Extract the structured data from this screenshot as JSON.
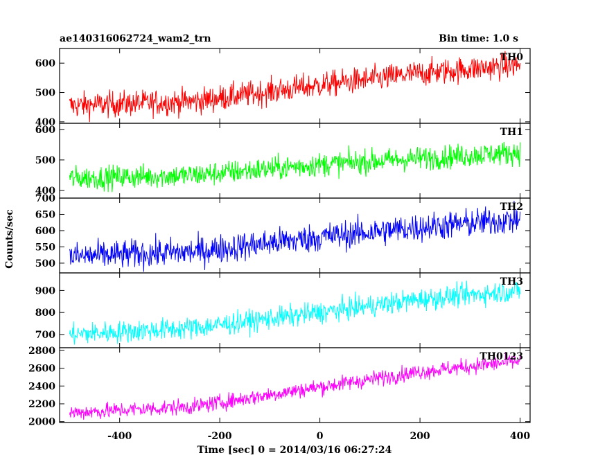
{
  "chart_data": {
    "type": "line",
    "title": "ae140316062724_wam2_trn",
    "bin_time_label": "Bin time: 1.0 s",
    "ylabel": "Counts/sec",
    "xlabel": "Time [sec] 0 = 2014/03/16 06:27:24",
    "xlim": [
      -520,
      420
    ],
    "x_data_range": [
      -500,
      400
    ],
    "x_ticks": [
      -400,
      -200,
      0,
      200,
      400
    ],
    "panels": [
      {
        "name": "TH0",
        "color": "#ff0000",
        "ylim": [
          395,
          650
        ],
        "y_ticks": [
          400,
          500,
          600
        ],
        "trend": [
          [
            -500,
            455
          ],
          [
            -250,
            470
          ],
          [
            0,
            525
          ],
          [
            200,
            565
          ],
          [
            400,
            595
          ]
        ],
        "noise": 40
      },
      {
        "name": "TH1",
        "color": "#00ff00",
        "ylim": [
          375,
          620
        ],
        "y_ticks": [
          400,
          500,
          600
        ],
        "trend": [
          [
            -500,
            440
          ],
          [
            -250,
            450
          ],
          [
            0,
            485
          ],
          [
            200,
            505
          ],
          [
            400,
            525
          ]
        ],
        "noise": 35
      },
      {
        "name": "TH2",
        "color": "#0000ff",
        "ylim": [
          470,
          700
        ],
        "y_ticks": [
          500,
          550,
          600,
          650,
          700
        ],
        "trend": [
          [
            -500,
            520
          ],
          [
            -250,
            535
          ],
          [
            0,
            580
          ],
          [
            200,
            610
          ],
          [
            400,
            635
          ]
        ],
        "noise": 40
      },
      {
        "name": "TH3",
        "color": "#00ffff",
        "ylim": [
          640,
          980
        ],
        "y_ticks": [
          700,
          800,
          900
        ],
        "trend": [
          [
            -500,
            700
          ],
          [
            -250,
            730
          ],
          [
            0,
            800
          ],
          [
            200,
            860
          ],
          [
            400,
            900
          ]
        ],
        "noise": 45
      },
      {
        "name": "TH0123",
        "color": "#ff00ff",
        "ylim": [
          1990,
          2830
        ],
        "y_ticks": [
          2000,
          2200,
          2400,
          2600,
          2800
        ],
        "trend": [
          [
            -500,
            2100
          ],
          [
            -250,
            2170
          ],
          [
            0,
            2390
          ],
          [
            200,
            2560
          ],
          [
            400,
            2680
          ]
        ],
        "noise": 80
      }
    ]
  }
}
